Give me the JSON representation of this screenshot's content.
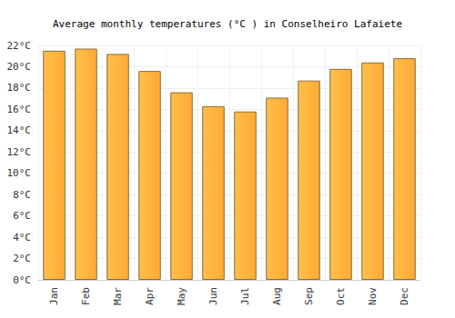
{
  "chart_data": {
    "type": "bar",
    "title": "Average monthly temperatures (°C ) in Conselheiro Lafaiete",
    "categories": [
      "Jan",
      "Feb",
      "Mar",
      "Apr",
      "May",
      "Jun",
      "Jul",
      "Aug",
      "Sep",
      "Oct",
      "Nov",
      "Dec"
    ],
    "values": [
      21.5,
      21.7,
      21.2,
      19.6,
      17.6,
      16.3,
      15.8,
      17.1,
      18.7,
      19.8,
      20.4,
      20.8
    ],
    "color": "#fdaa35",
    "ylim": [
      0,
      22
    ],
    "yticks": [
      {
        "value": 0,
        "label": "0°C"
      },
      {
        "value": 2,
        "label": "2°C"
      },
      {
        "value": 4,
        "label": "4°C"
      },
      {
        "value": 6,
        "label": "6°C"
      },
      {
        "value": 8,
        "label": "8°C"
      },
      {
        "value": 10,
        "label": "10°C"
      },
      {
        "value": 12,
        "label": "12°C"
      },
      {
        "value": 14,
        "label": "14°C"
      },
      {
        "value": 16,
        "label": "16°C"
      },
      {
        "value": 18,
        "label": "18°C"
      },
      {
        "value": 20,
        "label": "20°C"
      },
      {
        "value": 22,
        "label": "22°C"
      }
    ],
    "grid": true
  }
}
